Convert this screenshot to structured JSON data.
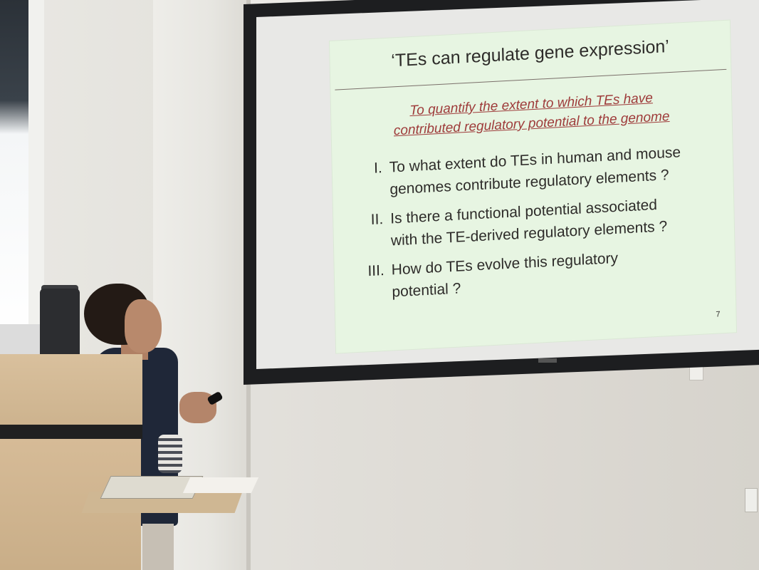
{
  "slide": {
    "title": "‘TEs can regulate gene expression’",
    "subtitle_line1": "To quantify the extent to which TEs have",
    "subtitle_line2": "contributed regulatory potential to the genome",
    "questions": [
      {
        "number": "I.",
        "line1": "To what extent do TEs in human and mouse",
        "line2": "genomes contribute regulatory elements ?"
      },
      {
        "number": "II.",
        "line1": "Is there a functional potential associated",
        "line2": "with the TE-derived regulatory elements ?"
      },
      {
        "number": "III.",
        "line1": "How do TEs evolve this regulatory",
        "line2": "potential ?"
      }
    ],
    "page_number": "7",
    "colors": {
      "background": "#e7f5e2",
      "subtitle": "#9e3b3a",
      "text": "#2e2c2a"
    }
  }
}
